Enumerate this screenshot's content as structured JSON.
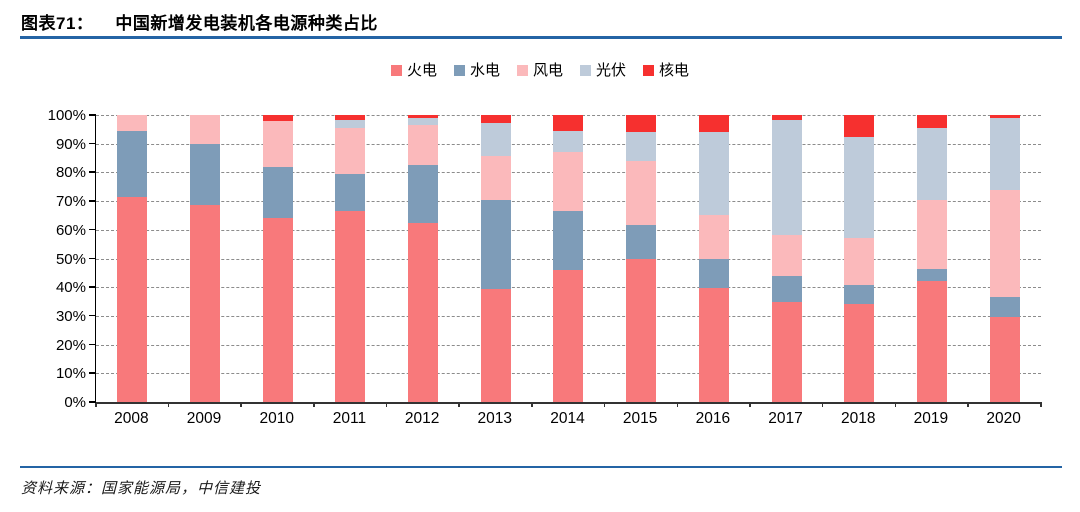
{
  "header": {
    "figure_label": "图表71：",
    "title": "中国新增发电装机各电源种类占比"
  },
  "footer": {
    "source": "资料来源：国家能源局，中信建投"
  },
  "colors": {
    "rule_blue": "#2464A5",
    "axis": "#000000",
    "grid": "#8c8c8c"
  },
  "chart_data": {
    "type": "bar",
    "stacked": true,
    "unit": "percent",
    "title": "中国新增发电装机各电源种类占比",
    "xlabel": "",
    "ylabel": "",
    "ylim": [
      0,
      100
    ],
    "grid": "horizontal-dashed",
    "legend_position": "top-center",
    "y_ticks": [
      "100%",
      "90%",
      "80%",
      "70%",
      "60%",
      "50%",
      "40%",
      "30%",
      "20%",
      "10%",
      "0%"
    ],
    "categories": [
      "2008",
      "2009",
      "2010",
      "2011",
      "2012",
      "2013",
      "2014",
      "2015",
      "2016",
      "2017",
      "2018",
      "2019",
      "2020"
    ],
    "series": [
      {
        "key": "thermal",
        "name": "火电",
        "color": "#F8797B",
        "values": [
          71.5,
          68.8,
          64,
          66.5,
          62.5,
          39.5,
          46,
          50,
          39.7,
          34.7,
          34,
          42,
          29.5
        ]
      },
      {
        "key": "hydro",
        "name": "水电",
        "color": "#7E9CB8",
        "values": [
          23,
          21.2,
          18,
          13,
          20,
          31,
          20.6,
          11.7,
          10.2,
          9.2,
          6.7,
          4.3,
          7
        ]
      },
      {
        "key": "wind",
        "name": "风电",
        "color": "#FBB9BB",
        "values": [
          5.5,
          10,
          16,
          16,
          14,
          15.2,
          20.5,
          22.3,
          15.3,
          14.4,
          16.4,
          24.1,
          37.5
        ]
      },
      {
        "key": "solar",
        "name": "光伏",
        "color": "#BECBDA",
        "values": [
          0,
          0,
          0,
          2.7,
          2.5,
          11.6,
          7.3,
          10,
          29,
          40.1,
          35.2,
          25.1,
          25
        ]
      },
      {
        "key": "nuclear",
        "name": "核电",
        "color": "#F6302F",
        "values": [
          0,
          0,
          2,
          1.8,
          1,
          2.7,
          5.6,
          6,
          5.8,
          1.6,
          7.7,
          4.5,
          1
        ]
      }
    ]
  }
}
